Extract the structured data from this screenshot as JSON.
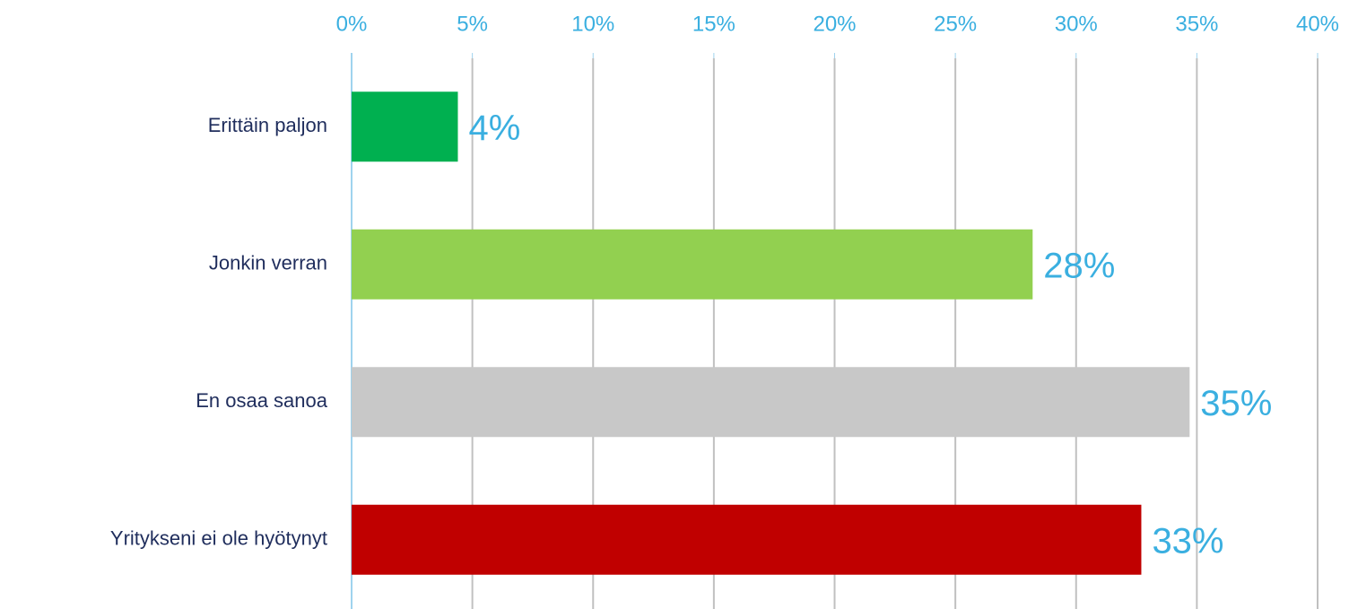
{
  "chart_data": {
    "type": "bar",
    "orientation": "horizontal",
    "categories": [
      "Erittäin paljon",
      "Jonkin verran",
      "En osaa sanoa",
      "Yritykseni ei ole hyötynyt"
    ],
    "values": [
      4.4,
      28.2,
      34.7,
      32.7
    ],
    "value_labels": [
      "4%",
      "28%",
      "35%",
      "33%"
    ],
    "colors": [
      "#00b050",
      "#92d050",
      "#c8c8c8",
      "#c00000"
    ],
    "xlim": [
      0,
      40
    ],
    "xticks": [
      {
        "value": 0,
        "label": "0%"
      },
      {
        "value": 5,
        "label": "5%"
      },
      {
        "value": 10,
        "label": "10%"
      },
      {
        "value": 15,
        "label": "15%"
      },
      {
        "value": 20,
        "label": "20%"
      },
      {
        "value": 25,
        "label": "25%"
      },
      {
        "value": 30,
        "label": "30%"
      },
      {
        "value": 35,
        "label": "35%"
      },
      {
        "value": 40,
        "label": "40%"
      }
    ],
    "grid": true
  }
}
